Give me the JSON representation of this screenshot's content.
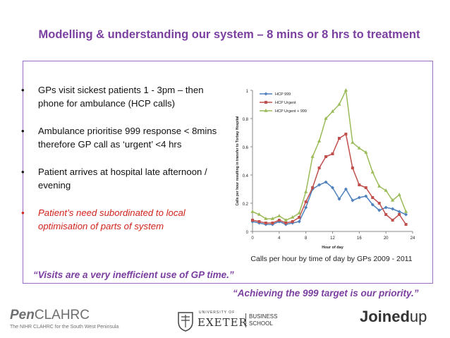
{
  "title": "Modelling & understanding our system – 8 mins or 8 hrs to treatment",
  "bullets": [
    {
      "text": "GPs visit sickest patients  1 - 3pm – then phone for ambulance (HCP calls)"
    },
    {
      "text": "Ambulance prioritise 999 response < 8mins therefore GP call as ‘urgent’  <4 hrs"
    },
    {
      "text": "Patient arrives at hospital late afternoon / evening"
    },
    {
      "text": "Patient’s need subordinated to local optimisation of parts of system"
    }
  ],
  "bullet_symbol": "•",
  "caption": "Calls per hour by time of day by GPs 2009 - 2011",
  "quote1": "“Visits are a very inefficient use of GP time.”",
  "quote2": "“Achieving the 999 target is our priority.”",
  "footer": {
    "pen_bold": "Pen",
    "pen_rest": "CLAHRC",
    "pen_sub": "The NIHR CLAHRC for the South West Peninsula",
    "exeter_univ": "UNIVERSITY OF",
    "exeter": "EXETER",
    "business1": "BUSINESS",
    "business2": "SCHOOL",
    "joined_bold": "Joined",
    "joined_rest": "up"
  },
  "colors": {
    "title": "#7b3fa0",
    "red": "#d0221b",
    "series_blue": "#4f81bd",
    "series_red": "#c0504d",
    "series_green": "#9bbb59"
  },
  "chart_data": {
    "type": "line",
    "xlabel": "Hour of day",
    "ylabel": "Calls per hour resulting in transfer to Torbay Hospital",
    "xlim": [
      0,
      24
    ],
    "ylim": [
      0,
      1
    ],
    "xticks": [
      0,
      4,
      8,
      12,
      16,
      20,
      24
    ],
    "yticks": [
      0,
      0.2,
      0.4,
      0.6,
      0.8,
      1
    ],
    "x": [
      0,
      1,
      2,
      3,
      4,
      5,
      6,
      7,
      8,
      9,
      10,
      11,
      12,
      13,
      14,
      15,
      16,
      17,
      18,
      19,
      20,
      21,
      22,
      23
    ],
    "legend_position": "top-left",
    "series": [
      {
        "name": "HCP 999",
        "color": "#4f81bd",
        "marker": "diamond",
        "values": [
          0.07,
          0.06,
          0.05,
          0.05,
          0.07,
          0.05,
          0.06,
          0.07,
          0.17,
          0.3,
          0.33,
          0.35,
          0.31,
          0.23,
          0.3,
          0.22,
          0.24,
          0.25,
          0.19,
          0.15,
          0.17,
          0.16,
          0.14,
          0.12
        ]
      },
      {
        "name": "HCP Urgent",
        "color": "#c0504d",
        "marker": "square",
        "values": [
          0.08,
          0.07,
          0.06,
          0.06,
          0.08,
          0.06,
          0.07,
          0.1,
          0.21,
          0.31,
          0.45,
          0.53,
          0.55,
          0.66,
          0.69,
          0.45,
          0.33,
          0.31,
          0.24,
          0.2,
          0.12,
          0.08,
          0.12,
          0.05
        ]
      },
      {
        "name": "HCP Urgent + 999",
        "color": "#9bbb59",
        "marker": "triangle",
        "values": [
          0.14,
          0.12,
          0.09,
          0.09,
          0.11,
          0.08,
          0.1,
          0.13,
          0.28,
          0.53,
          0.64,
          0.8,
          0.85,
          0.9,
          1.0,
          0.63,
          0.59,
          0.56,
          0.42,
          0.32,
          0.29,
          0.22,
          0.26,
          0.14
        ]
      }
    ]
  }
}
